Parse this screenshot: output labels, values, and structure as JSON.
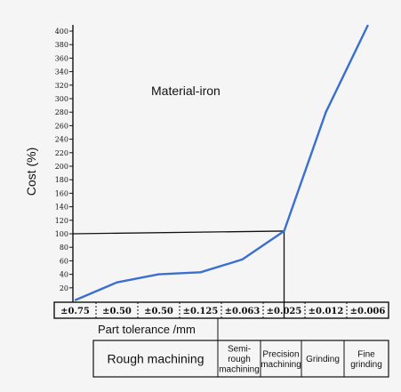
{
  "chart_data": {
    "type": "line",
    "ylabel": "Cost (%)",
    "xlabel": "Part tolerance /mm",
    "annotation": "Material-iron",
    "ylim": [
      0,
      400
    ],
    "yticks": [
      20,
      40,
      60,
      80,
      100,
      120,
      140,
      160,
      180,
      200,
      220,
      240,
      260,
      280,
      300,
      320,
      340,
      360,
      380,
      400
    ],
    "ytick_labels": [
      "20",
      "40",
      "60",
      "80",
      "100",
      "120",
      "140",
      "160",
      "180",
      "200",
      "220",
      "240",
      "260",
      "280",
      "300",
      "320",
      "340",
      "360",
      "380",
      "400"
    ],
    "categories": [
      "±0.75",
      "±0.50",
      "±0.50",
      "±0.125",
      "±0.063",
      "±0.025",
      "±0.012",
      "±0.006"
    ],
    "values": [
      2,
      28,
      40,
      43,
      62,
      104,
      280,
      408
    ],
    "reference_level": 100,
    "reference_category_index": 5,
    "process_categories": [
      "Rough machining",
      "Semi-rough machining",
      "Precision machining",
      "Grinding",
      "Fine grinding"
    ],
    "line_color": "#3a6fd1"
  }
}
